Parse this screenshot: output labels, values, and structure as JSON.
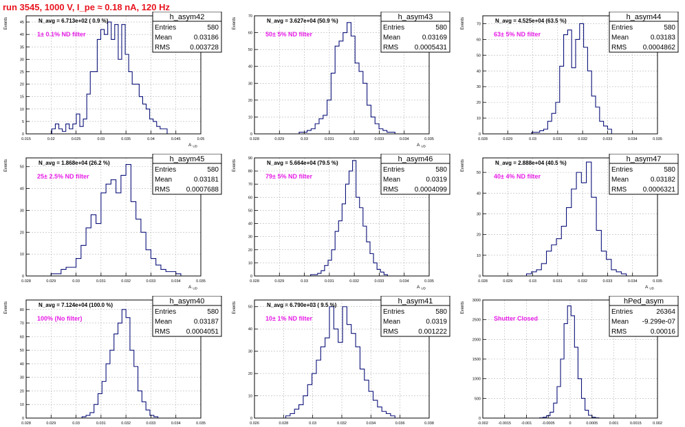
{
  "title": "run 3545,  1000 V, I_pe ≈ 0.18 nA, 120 Hz",
  "colors": {
    "title": "#e8141e",
    "histogram": "#0a1078",
    "annotation": "#e61ce6",
    "grid": "#b5b5b5"
  },
  "ylabel": "Events",
  "chart_data": [
    {
      "type": "bar",
      "name": "h_asym42",
      "stats": {
        "entries": "580",
        "mean": "0.03186",
        "rms": "0.003728"
      },
      "navg_label": "N_avg = 6.713e+02 ( 0.9 %)",
      "filter_label": "1± 0.1% ND filter",
      "xlabel": "A_UD",
      "xlim": [
        0.015,
        0.05
      ],
      "ylim": [
        0,
        47.5
      ],
      "xticks": [
        "0.015",
        "0.02",
        "0.025",
        "0.03",
        "0.035",
        "0.04",
        "0.045",
        "0.05"
      ],
      "yticks": [
        "0",
        "5",
        "10",
        "15",
        "20",
        "25",
        "30",
        "35",
        "40",
        "45"
      ],
      "x": [
        0.0205,
        0.0212,
        0.0219,
        0.0226,
        0.0233,
        0.024,
        0.0247,
        0.0254,
        0.0261,
        0.0268,
        0.0275,
        0.0282,
        0.0289,
        0.0296,
        0.0303,
        0.031,
        0.0317,
        0.0324,
        0.0331,
        0.0338,
        0.0345,
        0.0352,
        0.0359,
        0.0366,
        0.0373,
        0.038,
        0.0387,
        0.0394,
        0.0401,
        0.0408,
        0.0415,
        0.0422,
        0.0429
      ],
      "values": [
        2,
        4,
        2,
        1,
        4,
        2,
        4,
        8,
        3,
        6,
        16,
        25,
        25,
        38,
        42,
        40,
        45,
        38,
        44,
        30,
        44,
        32,
        25,
        20,
        20,
        15,
        12,
        10,
        6,
        5,
        3,
        2,
        2
      ]
    },
    {
      "type": "bar",
      "name": "h_asym43",
      "stats": {
        "entries": "580",
        "mean": "0.03169",
        "rms": "0.0005431"
      },
      "navg_label": "N_avg = 3.627e+04 (50.9 %)",
      "filter_label": "50± 5% ND filter",
      "xlabel": "A_UD",
      "xlim": [
        0.028,
        0.035
      ],
      "ylim": [
        0,
        70
      ],
      "xticks": [
        "0.028",
        "0.029",
        "0.03",
        "0.031",
        "0.032",
        "0.033",
        "0.034",
        "0.035"
      ],
      "yticks": [
        "0",
        "10",
        "20",
        "30",
        "40",
        "50",
        "60",
        "70"
      ],
      "x": [
        0.02987,
        0.03003,
        0.03019,
        0.03035,
        0.03051,
        0.03067,
        0.03083,
        0.03099,
        0.03115,
        0.03131,
        0.03147,
        0.03163,
        0.03179,
        0.03195,
        0.03211,
        0.03227,
        0.03243,
        0.03259,
        0.03275,
        0.03291,
        0.03307,
        0.03323,
        0.03339,
        0.03355
      ],
      "values": [
        1,
        1,
        2,
        3,
        6,
        9,
        11,
        20,
        36,
        52,
        55,
        60,
        66,
        58,
        42,
        37,
        30,
        17,
        10,
        6,
        3,
        2,
        1,
        1
      ]
    },
    {
      "type": "bar",
      "name": "h_asym44",
      "stats": {
        "entries": "580",
        "mean": "0.03183",
        "rms": "0.0004862"
      },
      "navg_label": "N_avg = 4.525e+04 (63.5 %)",
      "filter_label": "63± 5% ND filter",
      "xlabel": "",
      "xlim": [
        0.028,
        0.035
      ],
      "ylim": [
        0,
        75
      ],
      "xticks": [
        "0.028",
        "0.029",
        "0.03",
        "0.031",
        "0.032",
        "0.033",
        "0.034",
        "0.035"
      ],
      "yticks": [
        "0",
        "10",
        "20",
        "30",
        "40",
        "50",
        "60",
        "70"
      ],
      "x": [
        0.03004,
        0.0302,
        0.03036,
        0.03052,
        0.03068,
        0.03084,
        0.031,
        0.03116,
        0.03132,
        0.03148,
        0.03164,
        0.0318,
        0.03196,
        0.03212,
        0.03228,
        0.03244,
        0.0326,
        0.03276,
        0.03292,
        0.03308
      ],
      "values": [
        1,
        1,
        2,
        3,
        8,
        13,
        20,
        43,
        63,
        66,
        42,
        60,
        70,
        55,
        40,
        24,
        17,
        8,
        5,
        3
      ]
    },
    {
      "type": "bar",
      "name": "h_asym45",
      "stats": {
        "entries": "580",
        "mean": "0.03181",
        "rms": "0.0007688"
      },
      "navg_label": "N_avg = 1.868e+04 (26.2 %)",
      "filter_label": "25± 2.5% ND filter",
      "xlabel": "A_UD",
      "xlim": [
        0.028,
        0.035
      ],
      "ylim": [
        0,
        54
      ],
      "xticks": [
        "0.028",
        "0.029",
        "0.03",
        "0.031",
        "0.032",
        "0.033",
        "0.034",
        "0.035"
      ],
      "yticks": [
        "0",
        "10",
        "20",
        "30",
        "40",
        "50"
      ],
      "x": [
        0.0291,
        0.0293,
        0.0295,
        0.0297,
        0.0299,
        0.0301,
        0.0303,
        0.0305,
        0.0307,
        0.0309,
        0.0311,
        0.0313,
        0.0315,
        0.0317,
        0.0319,
        0.0321,
        0.0323,
        0.0325,
        0.0327,
        0.0329,
        0.0331,
        0.0333,
        0.0335,
        0.0337,
        0.0339,
        0.0341
      ],
      "values": [
        1,
        1,
        3,
        4,
        4,
        8,
        14,
        22,
        28,
        24,
        38,
        42,
        44,
        38,
        46,
        51,
        34,
        26,
        20,
        12,
        8,
        5,
        3,
        2,
        2,
        1
      ]
    },
    {
      "type": "bar",
      "name": "h_asym46",
      "stats": {
        "entries": "580",
        "mean": "0.0319",
        "rms": "0.0004099"
      },
      "navg_label": "N_avg = 5.664e+04 (79.5 %)",
      "filter_label": "79± 5% ND filter",
      "xlabel": "A_UD",
      "xlim": [
        0.028,
        0.035
      ],
      "ylim": [
        0,
        90
      ],
      "xticks": [
        "0.028",
        "0.029",
        "0.03",
        "0.031",
        "0.032",
        "0.033",
        "0.034",
        "0.035"
      ],
      "yticks": [
        "0",
        "10",
        "20",
        "30",
        "40",
        "50",
        "60",
        "70",
        "80",
        "90"
      ],
      "x": [
        0.03032,
        0.03046,
        0.0306,
        0.03074,
        0.03088,
        0.03102,
        0.03116,
        0.0313,
        0.03144,
        0.03158,
        0.03172,
        0.03186,
        0.032,
        0.03214,
        0.03228,
        0.03242,
        0.03256,
        0.0327,
        0.03284,
        0.03298,
        0.03312,
        0.03326
      ],
      "values": [
        1,
        1,
        2,
        4,
        8,
        12,
        20,
        34,
        42,
        55,
        70,
        80,
        88,
        60,
        52,
        38,
        26,
        17,
        10,
        5,
        3,
        1
      ]
    },
    {
      "type": "bar",
      "name": "h_asym47",
      "stats": {
        "entries": "580",
        "mean": "0.03182",
        "rms": "0.0006321"
      },
      "navg_label": "N_avg = 2.888e+04 (40.5 %)",
      "filter_label": "40± 4% ND filter",
      "xlabel": "A_UD",
      "xlim": [
        0.028,
        0.035
      ],
      "ylim": [
        0,
        57
      ],
      "xticks": [
        "0.028",
        "0.029",
        "0.03",
        "0.031",
        "0.032",
        "0.033",
        "0.034",
        "0.035"
      ],
      "yticks": [
        "0",
        "10",
        "20",
        "30",
        "40",
        "50"
      ],
      "x": [
        0.02985,
        0.03005,
        0.03025,
        0.03045,
        0.03065,
        0.03085,
        0.03105,
        0.03125,
        0.03145,
        0.03165,
        0.03185,
        0.03205,
        0.03225,
        0.03245,
        0.03265,
        0.03285,
        0.03305,
        0.03325,
        0.03345,
        0.03365
      ],
      "values": [
        1,
        2,
        3,
        6,
        12,
        15,
        18,
        24,
        33,
        42,
        50,
        45,
        55,
        38,
        22,
        12,
        8,
        3,
        2,
        1
      ]
    },
    {
      "type": "bar",
      "name": "h_asym40",
      "stats": {
        "entries": "580",
        "mean": "0.03187",
        "rms": "0.0004051"
      },
      "navg_label": "N_avg = 7.124e+04 (100.0 %)",
      "filter_label": "100% (No filter)",
      "xlabel": "A_UD",
      "xlim": [
        0.028,
        0.035
      ],
      "ylim": [
        0,
        87
      ],
      "xticks": [
        "0.028",
        "0.029",
        "0.03",
        "0.031",
        "0.032",
        "0.033",
        "0.034",
        "0.035"
      ],
      "yticks": [
        "0",
        "10",
        "20",
        "30",
        "40",
        "50",
        "60",
        "70",
        "80"
      ],
      "x": [
        0.03032,
        0.03048,
        0.03064,
        0.0308,
        0.03096,
        0.03112,
        0.03128,
        0.03144,
        0.0316,
        0.03176,
        0.03192,
        0.03208,
        0.03224,
        0.0324,
        0.03256,
        0.03272,
        0.03288,
        0.03304,
        0.0332
      ],
      "values": [
        1,
        2,
        4,
        10,
        18,
        27,
        40,
        50,
        62,
        70,
        80,
        74,
        50,
        38,
        20,
        12,
        6,
        2,
        1
      ]
    },
    {
      "type": "bar",
      "name": "h_asym41",
      "stats": {
        "entries": "580",
        "mean": "0.0319",
        "rms": "0.001222"
      },
      "navg_label": "N_avg = 6.790e+03 ( 9.5 %)",
      "filter_label": "10± 1% ND filter",
      "xlabel": "A_UD",
      "xlim": [
        0.026,
        0.038
      ],
      "ylim": [
        0,
        53
      ],
      "xticks": [
        "0.026",
        "0.028",
        "0.03",
        "0.032",
        "0.034",
        "0.036",
        "0.038"
      ],
      "yticks": [
        "0",
        "10",
        "20",
        "30",
        "40",
        "50"
      ],
      "x": [
        0.0283,
        0.0286,
        0.0289,
        0.0292,
        0.0295,
        0.0298,
        0.0301,
        0.0304,
        0.0307,
        0.031,
        0.0313,
        0.0316,
        0.0319,
        0.0322,
        0.0325,
        0.0328,
        0.0331,
        0.0334,
        0.0337,
        0.034,
        0.0343,
        0.0346,
        0.0349,
        0.0352,
        0.0355
      ],
      "values": [
        1,
        2,
        4,
        6,
        10,
        15,
        20,
        26,
        32,
        36,
        50,
        40,
        34,
        50,
        42,
        38,
        32,
        22,
        17,
        12,
        8,
        5,
        3,
        2,
        1
      ]
    },
    {
      "type": "bar",
      "name": "hPed_asym",
      "stats": {
        "entries": "26364",
        "mean": "-9.299e-07",
        "rms": "0.00016"
      },
      "navg_label": "",
      "filter_label": "Shutter Closed",
      "xlabel": "",
      "xlim": [
        -0.002,
        0.002
      ],
      "ylim": [
        0,
        3000
      ],
      "xticks": [
        "-0.002",
        "-0.0015",
        "-0.001",
        "-0.0005",
        "0",
        "0.0005",
        "0.001",
        "0.0015",
        "0.002"
      ],
      "yticks": [
        "0",
        "500",
        "1000",
        "1500",
        "2000",
        "2500",
        "3000"
      ],
      "x": [
        -0.00066,
        -0.00058,
        -0.0005,
        -0.00042,
        -0.00034,
        -0.00026,
        -0.00018,
        -0.0001,
        -2e-05,
        6e-05,
        0.00014,
        0.00022,
        0.0003,
        0.00038,
        0.00046,
        0.00054,
        0.00062
      ],
      "values": [
        5,
        20,
        60,
        150,
        380,
        800,
        1500,
        2400,
        2850,
        2600,
        1800,
        1000,
        500,
        200,
        70,
        20,
        5
      ]
    }
  ]
}
